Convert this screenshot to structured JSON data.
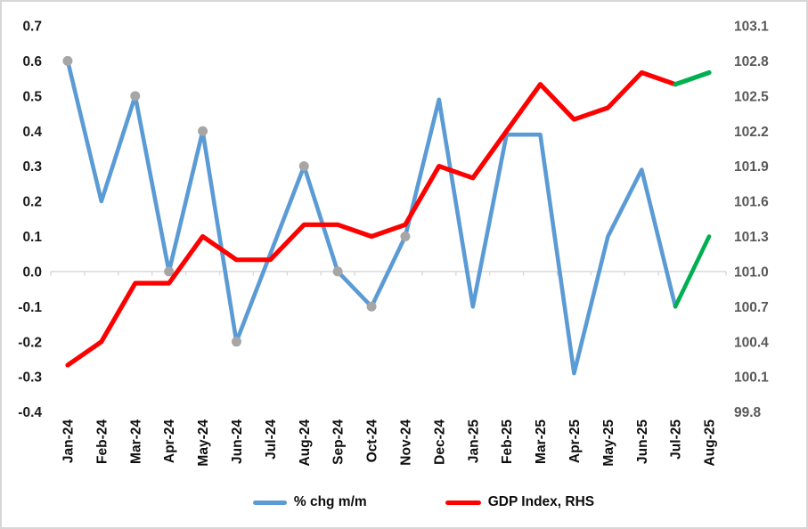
{
  "chart_data": {
    "type": "line",
    "title": "",
    "xlabel": "",
    "ylabel": "",
    "categories": [
      "Jan-24",
      "Feb-24",
      "Mar-24",
      "Apr-24",
      "May-24",
      "Jun-24",
      "Jul-24",
      "Aug-24",
      "Sep-24",
      "Oct-24",
      "Nov-24",
      "Dec-24",
      "Jan-25",
      "Feb-25",
      "Mar-25",
      "Apr-25",
      "May-25",
      "Jun-25",
      "Jul-25",
      "Aug-25"
    ],
    "series": [
      {
        "name": "% chg m/m",
        "axis": "left",
        "color": "#5B9BD5",
        "values": [
          0.6,
          0.2,
          0.5,
          0.0,
          0.4,
          -0.2,
          0.05,
          0.3,
          0.0,
          -0.1,
          0.1,
          0.49,
          -0.1,
          0.39,
          0.39,
          -0.29,
          0.1,
          0.29,
          -0.1,
          0.1
        ],
        "markers": {
          "indices": [
            0,
            2,
            3,
            4,
            5,
            7,
            8,
            9,
            10
          ],
          "color": "#A6A6A6"
        }
      },
      {
        "name": "GDP Index, RHS",
        "axis": "right",
        "color": "#FF0000",
        "values": [
          100.2,
          100.4,
          100.9,
          100.9,
          101.3,
          101.1,
          101.1,
          101.4,
          101.4,
          101.3,
          101.4,
          101.9,
          101.8,
          102.2,
          102.6,
          102.3,
          102.4,
          102.7,
          102.6,
          102.7
        ]
      }
    ],
    "forecast_segment": {
      "start_index": 18,
      "start_category": "Jul-25",
      "color": "#00B050"
    },
    "left_axis": {
      "min": -0.4,
      "max": 0.7,
      "step": 0.1,
      "tick_labels": [
        "0.7",
        "0.6",
        "0.5",
        "0.4",
        "0.3",
        "0.2",
        "0.1",
        "0.0",
        "-0.1",
        "-0.2",
        "-0.3",
        "-0.4"
      ]
    },
    "right_axis": {
      "min": 99.8,
      "max": 103.1,
      "step": 0.3,
      "tick_labels": [
        "103.1",
        "102.8",
        "102.5",
        "102.2",
        "101.9",
        "101.6",
        "101.3",
        "101.0",
        "100.7",
        "100.4",
        "100.1",
        "99.8"
      ]
    },
    "grid": {
      "zero_line_only": true,
      "color": "#D9D9D9"
    },
    "legend": {
      "position": "bottom",
      "items": [
        {
          "label": "% chg m/m",
          "color": "#5B9BD5"
        },
        {
          "label": "GDP Index, RHS",
          "color": "#FF0000"
        }
      ]
    }
  }
}
